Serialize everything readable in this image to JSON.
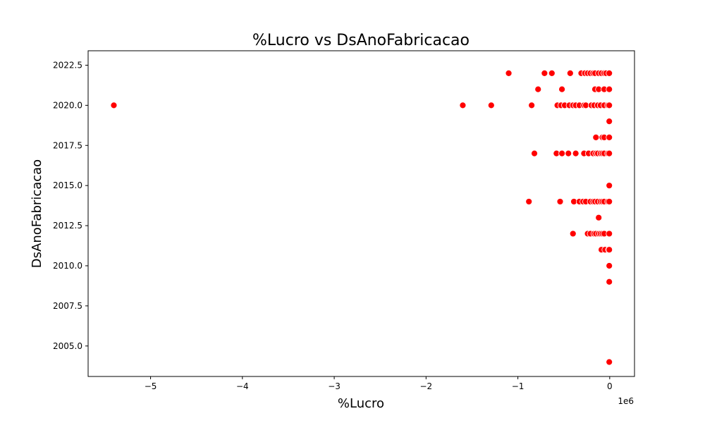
{
  "chart_data": {
    "type": "scatter",
    "title": "%Lucro vs DsAnoFabricacao",
    "xlabel": "%Lucro",
    "ylabel": "DsAnoFabricacao",
    "x_offset_label": "1e6",
    "xlim": [
      -5.68,
      0.27
    ],
    "ylim": [
      2003.1,
      2023.4
    ],
    "x_scale": 1000000,
    "x_ticks": [
      -5,
      -4,
      -3,
      -2,
      -1,
      0
    ],
    "x_tick_labels": [
      "−5",
      "−4",
      "−3",
      "−2",
      "−1",
      "0"
    ],
    "y_ticks": [
      2005.0,
      2007.5,
      2010.0,
      2012.5,
      2015.0,
      2017.5,
      2020.0,
      2022.5
    ],
    "y_tick_labels": [
      "2005.0",
      "2007.5",
      "2010.0",
      "2012.5",
      "2015.0",
      "2017.5",
      "2020.0",
      "2022.5"
    ],
    "grid": false,
    "marker_color": "#ff0000",
    "marker_edge_color": "#ffffff",
    "points": [
      [
        -1100000,
        2022
      ],
      [
        -710000,
        2022
      ],
      [
        -630000,
        2022
      ],
      [
        -430000,
        2022
      ],
      [
        -310000,
        2022
      ],
      [
        -270000,
        2022
      ],
      [
        -240000,
        2022
      ],
      [
        -210000,
        2022
      ],
      [
        -180000,
        2022
      ],
      [
        -160000,
        2022
      ],
      [
        -120000,
        2022
      ],
      [
        -90000,
        2022
      ],
      [
        -60000,
        2022
      ],
      [
        -40000,
        2022
      ],
      [
        -5000,
        2022
      ],
      [
        -780000,
        2021
      ],
      [
        -520000,
        2021
      ],
      [
        -160000,
        2021
      ],
      [
        -120000,
        2021
      ],
      [
        -60000,
        2021
      ],
      [
        -5000,
        2021
      ],
      [
        -5400000,
        2020
      ],
      [
        -1600000,
        2020
      ],
      [
        -1290000,
        2020
      ],
      [
        -850000,
        2020
      ],
      [
        -570000,
        2020
      ],
      [
        -530000,
        2020
      ],
      [
        -490000,
        2020
      ],
      [
        -440000,
        2020
      ],
      [
        -400000,
        2020
      ],
      [
        -370000,
        2020
      ],
      [
        -330000,
        2020
      ],
      [
        -280000,
        2020
      ],
      [
        -260000,
        2020
      ],
      [
        -200000,
        2020
      ],
      [
        -170000,
        2020
      ],
      [
        -130000,
        2020
      ],
      [
        -100000,
        2020
      ],
      [
        -60000,
        2020
      ],
      [
        -20000,
        2020
      ],
      [
        -5000,
        2020
      ],
      [
        -5000,
        2019
      ],
      [
        -150000,
        2018
      ],
      [
        -80000,
        2018
      ],
      [
        -60000,
        2018
      ],
      [
        -5000,
        2018
      ],
      [
        -820000,
        2017
      ],
      [
        -580000,
        2017
      ],
      [
        -520000,
        2017
      ],
      [
        -450000,
        2017
      ],
      [
        -370000,
        2017
      ],
      [
        -280000,
        2017
      ],
      [
        -230000,
        2017
      ],
      [
        -180000,
        2017
      ],
      [
        -150000,
        2017
      ],
      [
        -130000,
        2017
      ],
      [
        -100000,
        2017
      ],
      [
        -80000,
        2017
      ],
      [
        -60000,
        2017
      ],
      [
        -20000,
        2017
      ],
      [
        -5000,
        2017
      ],
      [
        -5000,
        2015
      ],
      [
        -880000,
        2014
      ],
      [
        -540000,
        2014
      ],
      [
        -390000,
        2014
      ],
      [
        -330000,
        2014
      ],
      [
        -290000,
        2014
      ],
      [
        -260000,
        2014
      ],
      [
        -210000,
        2014
      ],
      [
        -180000,
        2014
      ],
      [
        -160000,
        2014
      ],
      [
        -130000,
        2014
      ],
      [
        -100000,
        2014
      ],
      [
        -80000,
        2014
      ],
      [
        -60000,
        2014
      ],
      [
        -20000,
        2014
      ],
      [
        -5000,
        2014
      ],
      [
        -120000,
        2013
      ],
      [
        -400000,
        2012
      ],
      [
        -240000,
        2012
      ],
      [
        -210000,
        2012
      ],
      [
        -170000,
        2012
      ],
      [
        -150000,
        2012
      ],
      [
        -120000,
        2012
      ],
      [
        -100000,
        2012
      ],
      [
        -80000,
        2012
      ],
      [
        -60000,
        2012
      ],
      [
        -5000,
        2012
      ],
      [
        -90000,
        2011
      ],
      [
        -50000,
        2011
      ],
      [
        -10000,
        2011
      ],
      [
        -5000,
        2011
      ],
      [
        -5000,
        2010
      ],
      [
        -5000,
        2009
      ],
      [
        -5000,
        2004
      ]
    ]
  }
}
